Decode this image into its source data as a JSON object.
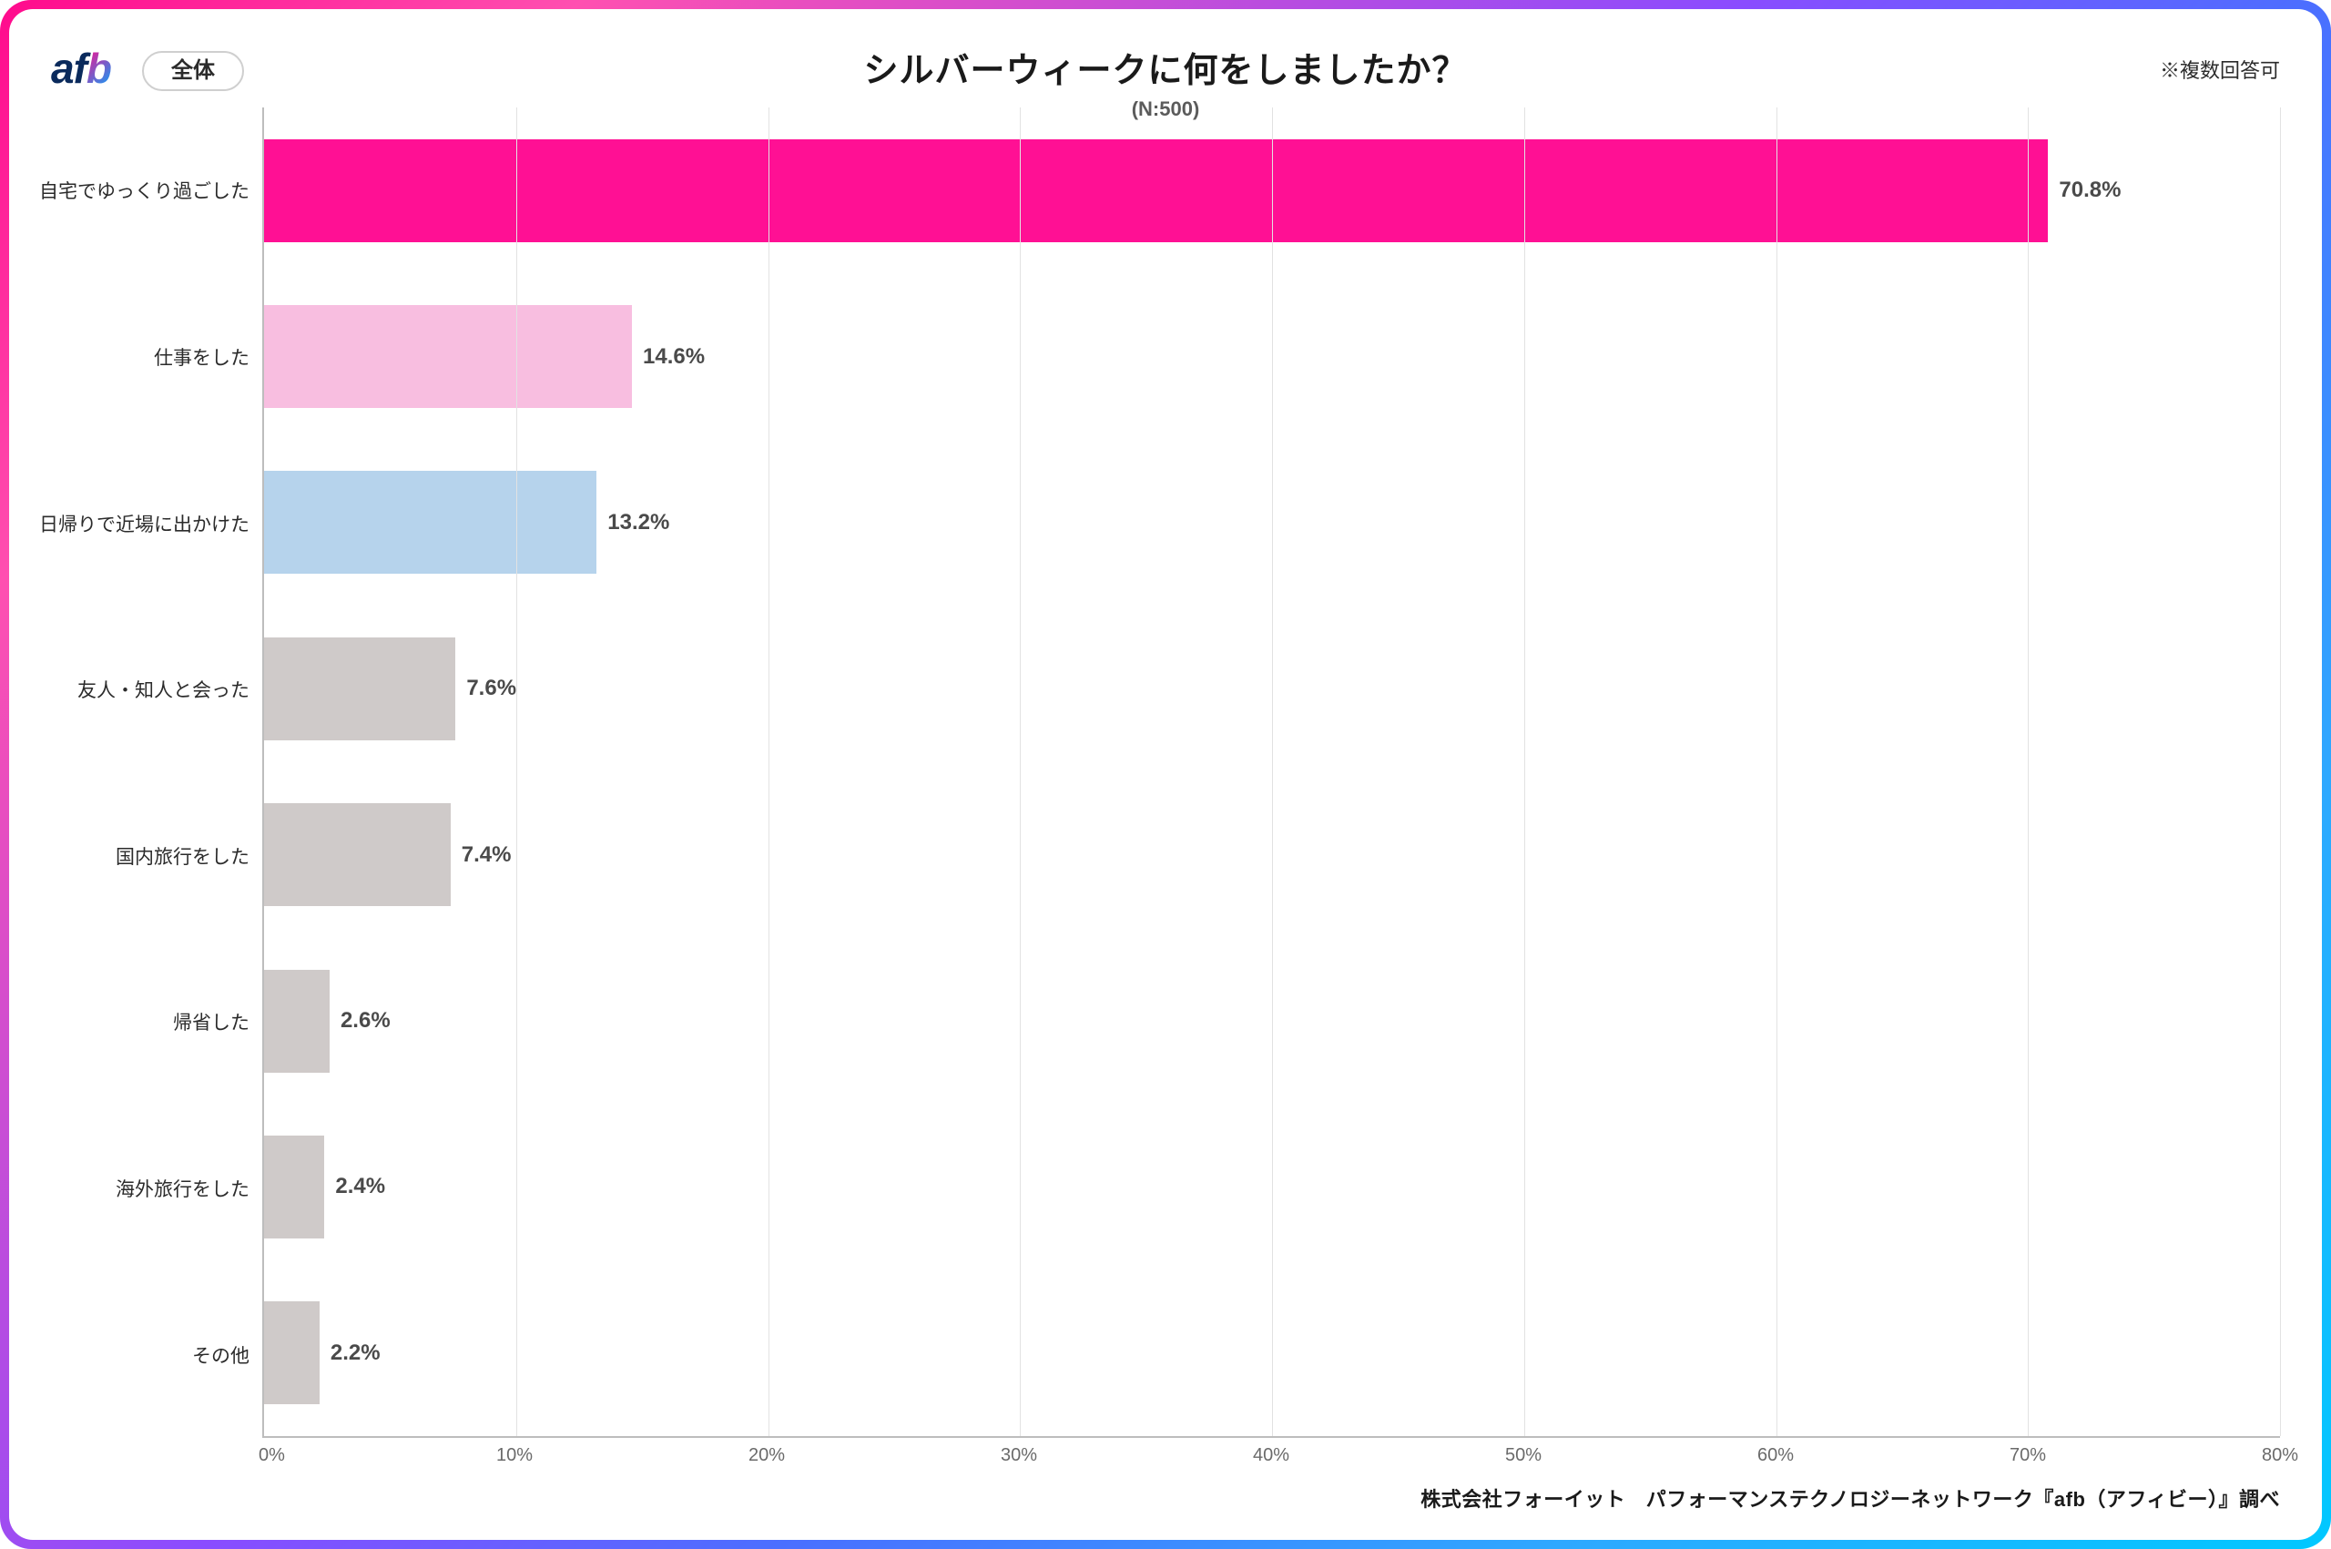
{
  "brand": {
    "text": "afb",
    "color_main": "#0a2a5c",
    "color_accent_from": "#ff0a8c",
    "color_accent_to": "#00a8ff"
  },
  "pill": {
    "label": "全体"
  },
  "title": "シルバーウィークに何をしましたか？",
  "subtitle": "(N:500)",
  "note": "※複数回答可",
  "footer": "株式会社フォーイット　パフォーマンステクノロジーネットワーク『afb（アフィビー）』調べ",
  "chart": {
    "type": "bar-horizontal",
    "xaxis": {
      "min": 0,
      "max": 80,
      "tick_step": 10,
      "tick_suffix": "%",
      "grid_color": "#e2e2e2",
      "axis_color": "#bdbdbd"
    },
    "category_label_fontsize": 21,
    "value_label_fontsize": 24,
    "value_label_color": "#4a4a4a",
    "bar_height_ratio": 0.62,
    "background_color": "#ffffff",
    "default_bar_color": "#cfcac9",
    "items": [
      {
        "label": "自宅でゆっくり過ごした",
        "value": 70.8,
        "display": "70.8%",
        "color": "#ff1094"
      },
      {
        "label": "仕事をした",
        "value": 14.6,
        "display": "14.6%",
        "color": "#f8bee0"
      },
      {
        "label": "日帰りで近場に出かけた",
        "value": 13.2,
        "display": "13.2%",
        "color": "#b6d3ec"
      },
      {
        "label": "友人・知人と会った",
        "value": 7.6,
        "display": "7.6%",
        "color": "#cfcac9"
      },
      {
        "label": "国内旅行をした",
        "value": 7.4,
        "display": "7.4%",
        "color": "#cfcac9"
      },
      {
        "label": "帰省した",
        "value": 2.6,
        "display": "2.6%",
        "color": "#cfcac9"
      },
      {
        "label": "海外旅行をした",
        "value": 2.4,
        "display": "2.4%",
        "color": "#cfcac9"
      },
      {
        "label": "その他",
        "value": 2.2,
        "display": "2.2%",
        "color": "#cfcac9"
      }
    ]
  },
  "frame_gradient": [
    "#ff0a8c",
    "#ff4fb0",
    "#8a4cff",
    "#4a6fff",
    "#2ea8ff",
    "#00c8ff"
  ]
}
